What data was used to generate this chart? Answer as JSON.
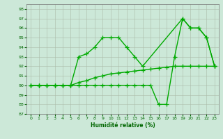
{
  "xlabel": "Humidité relative (%)",
  "xlim": [
    -0.5,
    23.5
  ],
  "ylim": [
    87,
    98.5
  ],
  "yticks": [
    87,
    88,
    89,
    90,
    91,
    92,
    93,
    94,
    95,
    96,
    97,
    98
  ],
  "xticks": [
    0,
    1,
    2,
    3,
    4,
    5,
    6,
    7,
    8,
    9,
    10,
    11,
    12,
    13,
    14,
    15,
    16,
    17,
    18,
    19,
    20,
    21,
    22,
    23
  ],
  "background_color": "#cce8d8",
  "grid_color": "#aabba8",
  "line_color": "#00aa00",
  "line_width": 1.0,
  "marker": "+",
  "marker_size": 4,
  "series": [
    {
      "x": [
        0,
        1,
        2,
        3,
        4,
        5,
        6,
        7,
        8,
        9,
        10,
        11,
        12,
        13,
        14,
        15,
        16,
        17,
        18,
        19,
        20,
        21,
        22,
        23
      ],
      "y": [
        90,
        90,
        90,
        90,
        90,
        90,
        90.3,
        90.5,
        90.8,
        91.0,
        91.2,
        91.3,
        91.4,
        91.5,
        91.6,
        91.7,
        91.8,
        91.9,
        92.0,
        92.0,
        92.0,
        92.0,
        92.0,
        92.0
      ]
    },
    {
      "x": [
        0,
        1,
        2,
        3,
        4,
        5,
        6,
        7,
        8,
        9,
        10,
        11,
        12,
        13,
        14,
        19,
        20,
        21,
        22,
        23
      ],
      "y": [
        90,
        90,
        90,
        90,
        90,
        90,
        93,
        93.3,
        94,
        95,
        95,
        95,
        94,
        93,
        92,
        97,
        96,
        96,
        95,
        92
      ]
    },
    {
      "x": [
        0,
        1,
        2,
        3,
        4,
        5,
        6,
        7,
        8,
        9,
        10,
        11,
        12,
        13,
        14,
        15,
        16,
        17,
        18,
        19,
        20,
        21,
        22,
        23
      ],
      "y": [
        90,
        90,
        90,
        90,
        90,
        90,
        90,
        90,
        90,
        90,
        90,
        90,
        90,
        90,
        90,
        90,
        88,
        88,
        93,
        97,
        96,
        96,
        95,
        92
      ]
    }
  ]
}
